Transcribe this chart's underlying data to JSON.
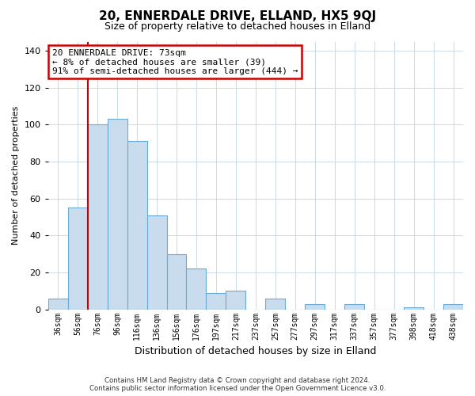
{
  "title_line1": "20, ENNERDALE DRIVE, ELLAND, HX5 9QJ",
  "title_line2": "Size of property relative to detached houses in Elland",
  "xlabel": "Distribution of detached houses by size in Elland",
  "ylabel": "Number of detached properties",
  "bar_labels": [
    "36sqm",
    "56sqm",
    "76sqm",
    "96sqm",
    "116sqm",
    "136sqm",
    "156sqm",
    "176sqm",
    "197sqm",
    "217sqm",
    "237sqm",
    "257sqm",
    "277sqm",
    "297sqm",
    "317sqm",
    "337sqm",
    "357sqm",
    "377sqm",
    "398sqm",
    "418sqm",
    "438sqm"
  ],
  "bar_values": [
    6,
    55,
    100,
    103,
    91,
    51,
    30,
    22,
    9,
    10,
    0,
    6,
    0,
    3,
    0,
    3,
    0,
    0,
    1,
    0,
    3
  ],
  "bar_color": "#c8dcee",
  "bar_edge_color": "#6aaad4",
  "vline_x_idx": 2,
  "vline_color": "#cc0000",
  "ylim": [
    0,
    145
  ],
  "yticks": [
    0,
    20,
    40,
    60,
    80,
    100,
    120,
    140
  ],
  "annotation_text": "20 ENNERDALE DRIVE: 73sqm\n← 8% of detached houses are smaller (39)\n91% of semi-detached houses are larger (444) →",
  "annotation_box_edge": "#cc0000",
  "footer_line1": "Contains HM Land Registry data © Crown copyright and database right 2024.",
  "footer_line2": "Contains public sector information licensed under the Open Government Licence v3.0.",
  "background_color": "#ffffff",
  "grid_color": "#ccdde8"
}
